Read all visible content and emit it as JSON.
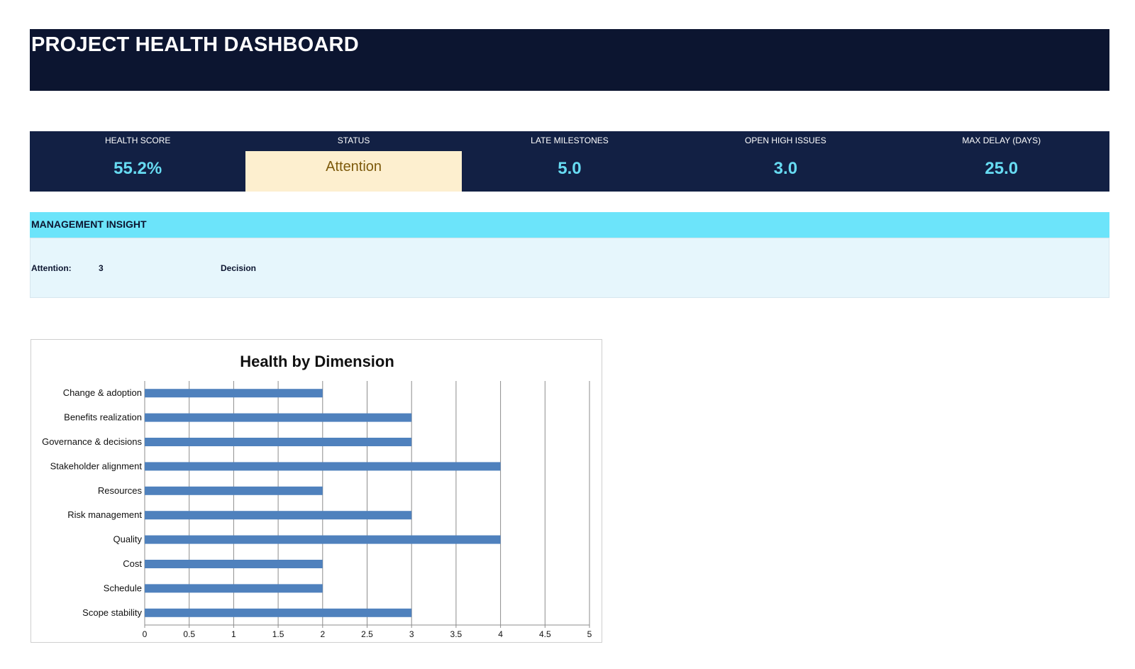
{
  "title": "PROJECT HEALTH DASHBOARD",
  "kpis": [
    {
      "label": "HEALTH SCORE",
      "value": "55.2%"
    },
    {
      "label": "STATUS",
      "value": "Attention"
    },
    {
      "label": "LATE MILESTONES",
      "value": "5.0"
    },
    {
      "label": "OPEN HIGH ISSUES",
      "value": "3.0"
    },
    {
      "label": "MAX DELAY (DAYS)",
      "value": "25.0"
    }
  ],
  "insight": {
    "header": "MANAGEMENT INSIGHT",
    "attention_label": "Attention:",
    "attention_value": "3",
    "decision_label": "Decision"
  },
  "colors": {
    "banner": "#0c1530",
    "kpi_bg": "#122044",
    "kpi_value": "#67dbf2",
    "status_bg": "#fdefcf",
    "status_text": "#7d5a0c",
    "insight_header": "#6ce4fa",
    "insight_body": "#e6f6fc",
    "bar": "#4f81bd"
  },
  "chart_data": {
    "type": "bar",
    "orientation": "horizontal",
    "title": "Health by Dimension",
    "categories": [
      "Change & adoption",
      "Benefits realization",
      "Governance & decisions",
      "Stakeholder alignment",
      "Resources",
      "Risk management",
      "Quality",
      "Cost",
      "Schedule",
      "Scope stability"
    ],
    "values": [
      2,
      3,
      3,
      4,
      2,
      3,
      4,
      2,
      2,
      3
    ],
    "xlim": [
      0,
      5
    ],
    "ticks": [
      "0",
      "0.5",
      "1",
      "1.5",
      "2",
      "2.5",
      "3",
      "3.5",
      "4",
      "4.5",
      "5"
    ],
    "grid": true,
    "legend": "none"
  }
}
